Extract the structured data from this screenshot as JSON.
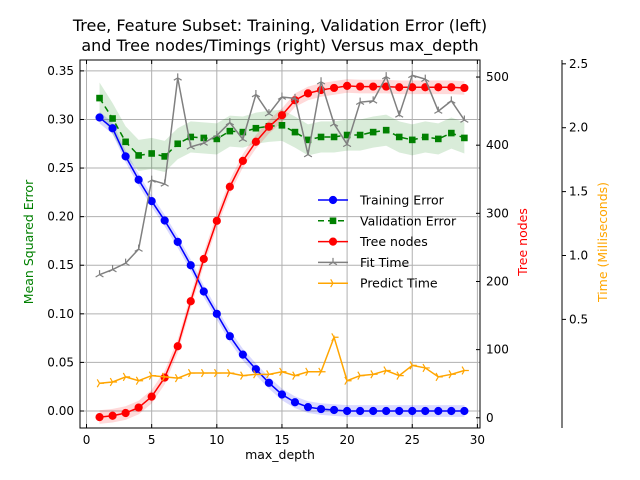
{
  "chart_data": {
    "type": "line",
    "title_lines": [
      "Tree, Feature Subset: Training, Validation Error (left)",
      "and Tree nodes/Timings (right) Versus max_depth"
    ],
    "xlabel": "max_depth",
    "ylabel_left": "Mean Squared Error",
    "ylabel_right": "Tree nodes",
    "ylabel_far_right": "Time (Milliseconds)",
    "xlim": [
      -0.5,
      30.2
    ],
    "ylim_left": [
      -0.0175,
      0.3612
    ],
    "ylim_right": [
      -15,
      525
    ],
    "ylim_far_right": [
      -0.35,
      2.53
    ],
    "x_ticks": [
      0,
      5,
      10,
      15,
      20,
      25,
      30
    ],
    "x_tick_labels": [
      "0",
      "5",
      "10",
      "15",
      "20",
      "25",
      "30"
    ],
    "y_left_ticks": [
      0.0,
      0.05,
      0.1,
      0.15,
      0.2,
      0.25,
      0.3,
      0.35
    ],
    "y_left_tick_labels": [
      "0.00",
      "0.05",
      "0.10",
      "0.15",
      "0.20",
      "0.25",
      "0.30",
      "0.35"
    ],
    "y_right_ticks": [
      0,
      100,
      200,
      300,
      400,
      500
    ],
    "y_right_tick_labels": [
      "0",
      "100",
      "200",
      "300",
      "400",
      "500"
    ],
    "y_far_right_ticks": [
      0.5,
      1.0,
      1.5,
      2.0,
      2.5
    ],
    "y_far_right_tick_labels": [
      "0.5",
      "1.0",
      "1.5",
      "2.0",
      "2.5"
    ],
    "grid": true,
    "legend_placement": "center-right",
    "x": [
      1,
      2,
      3,
      4,
      5,
      6,
      7,
      8,
      9,
      10,
      11,
      12,
      13,
      14,
      15,
      16,
      17,
      18,
      19,
      20,
      21,
      22,
      23,
      24,
      25,
      26,
      27,
      28,
      29
    ],
    "series": [
      {
        "name": "Training Error",
        "axis": "left",
        "color": "#0000ff",
        "marker": "circle",
        "linestyle": "solid",
        "band": 0.006,
        "values": [
          0.302,
          0.291,
          0.262,
          0.238,
          0.216,
          0.196,
          0.174,
          0.15,
          0.123,
          0.1,
          0.077,
          0.058,
          0.043,
          0.029,
          0.017,
          0.009,
          0.004,
          0.002,
          0.001,
          0.0,
          0.0,
          0.0,
          0.0,
          0.0,
          0.0,
          0.0,
          0.0,
          0.0,
          0.0
        ]
      },
      {
        "name": "Validation Error",
        "axis": "left",
        "color": "#008000",
        "marker": "square",
        "linestyle": "dashed",
        "band": 0.016,
        "values": [
          0.322,
          0.301,
          0.277,
          0.263,
          0.265,
          0.262,
          0.275,
          0.282,
          0.281,
          0.28,
          0.288,
          0.287,
          0.291,
          0.293,
          0.294,
          0.287,
          0.279,
          0.282,
          0.282,
          0.284,
          0.284,
          0.287,
          0.289,
          0.282,
          0.279,
          0.282,
          0.28,
          0.286,
          0.281
        ]
      },
      {
        "name": "Tree nodes",
        "axis": "right",
        "color": "#ff0000",
        "marker": "circle",
        "linestyle": "solid",
        "band": 10,
        "values": [
          1,
          3,
          7,
          15,
          31,
          59,
          105,
          171,
          233,
          289,
          339,
          377,
          405,
          427,
          444,
          466,
          476,
          481,
          484,
          487,
          486,
          486,
          486,
          485,
          485,
          485,
          485,
          485,
          484
        ]
      },
      {
        "name": "Fit Time",
        "axis": "far_right",
        "color": "#808080",
        "marker": "tri",
        "linestyle": "solid",
        "values": [
          0.85,
          0.89,
          0.94,
          1.05,
          1.59,
          1.56,
          2.39,
          1.85,
          1.88,
          1.94,
          2.04,
          1.91,
          2.26,
          2.11,
          2.24,
          2.23,
          1.79,
          2.36,
          2.03,
          1.87,
          2.2,
          2.21,
          2.4,
          2.1,
          2.41,
          2.38,
          2.13,
          2.21,
          2.06
        ]
      },
      {
        "name": "Predict Time",
        "axis": "far_right",
        "color": "#ffa500",
        "marker": "tri-right",
        "linestyle": "solid",
        "values": [
          0.0,
          0.01,
          0.05,
          0.02,
          0.06,
          0.05,
          0.04,
          0.08,
          0.08,
          0.08,
          0.08,
          0.06,
          0.07,
          0.07,
          0.09,
          0.06,
          0.09,
          0.09,
          0.36,
          0.02,
          0.06,
          0.07,
          0.1,
          0.06,
          0.14,
          0.12,
          0.05,
          0.07,
          0.1
        ]
      }
    ]
  }
}
